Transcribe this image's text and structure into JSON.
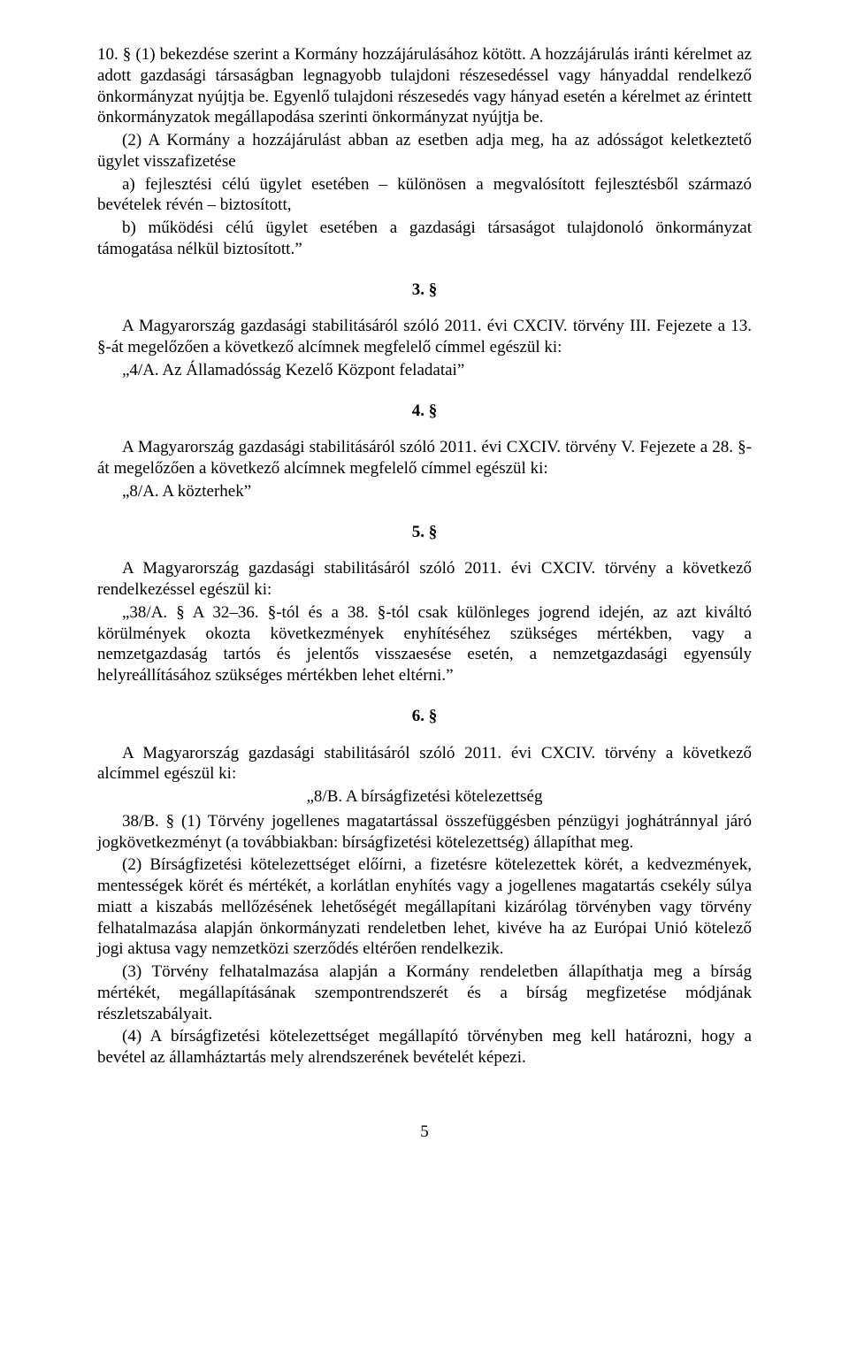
{
  "p1": "10. § (1) bekezdése szerint a Kormány hozzájárulásához kötött. A hozzájárulás iránti kérelmet az adott gazdasági társaságban legnagyobb tulajdoni részesedéssel vagy hányaddal rendelkező önkormányzat nyújtja be. Egyenlő tulajdoni részesedés vagy hányad esetén a kérelmet az érintett önkormányzatok megállapodása szerinti önkormányzat nyújtja be.",
  "p2": "(2) A Kormány a hozzájárulást abban az esetben adja meg, ha az adósságot keletkeztető ügylet visszafizetése",
  "p3": "a) fejlesztési célú ügylet esetében – különösen a megvalósított fejlesztésből származó bevételek révén – biztosított,",
  "p4": "b) működési célú ügylet esetében a gazdasági társaságot tulajdonoló önkormányzat támogatása nélkül biztosított.”",
  "s3": "3. §",
  "p5": "A Magyarország gazdasági stabilitásáról szóló 2011. évi CXCIV. törvény III. Fejezete a 13. §-át megelőzően a következő alcímnek megfelelő címmel egészül ki:",
  "p6": "„4/A. Az Államadósság Kezelő Központ feladatai”",
  "s4": "4. §",
  "p7": "A Magyarország gazdasági stabilitásáról szóló 2011. évi CXCIV. törvény V. Fejezete a 28. §-át megelőzően a következő alcímnek megfelelő címmel egészül ki:",
  "p8": "„8/A. A közterhek”",
  "s5": "5. §",
  "p9": "A Magyarország gazdasági stabilitásáról szóló 2011. évi CXCIV. törvény a következő rendelkezéssel egészül ki:",
  "p10": "„38/A. § A 32–36. §-tól és a 38. §-tól csak különleges jogrend idején, az azt kiváltó körülmények okozta következmények enyhítéséhez szükséges mértékben, vagy a nemzetgazdaság tartós és jelentős visszaesése esetén, a nemzetgazdasági egyensúly helyreállításához szükséges mértékben lehet eltérni.”",
  "s6": "6. §",
  "p11": "A Magyarország gazdasági stabilitásáról szóló 2011. évi CXCIV. törvény a következő alcímmel egészül ki:",
  "p12": "„8/B. A bírságfizetési kötelezettség",
  "p13": "38/B. § (1) Törvény jogellenes magatartással összefüggésben pénzügyi joghátránnyal járó jogkövetkezményt (a továbbiakban: bírságfizetési kötelezettség) állapíthat meg.",
  "p14": "(2) Bírságfizetési kötelezettséget előírni, a fizetésre kötelezettek körét, a kedvezmények, mentességek körét és mértékét, a korlátlan enyhítés vagy a jogellenes magatartás csekély súlya miatt a kiszabás mellőzésének lehetőségét megállapítani kizárólag törvényben vagy törvény felhatalmazása alapján önkormányzati rendeletben lehet, kivéve ha az Európai Unió kötelező jogi aktusa vagy nemzetközi szerződés eltérően rendelkezik.",
  "p15": "(3) Törvény felhatalmazása alapján a Kormány rendeletben állapíthatja meg a bírság mértékét, megállapításának szempontrendszerét és a bírság megfizetése módjának részletszabályait.",
  "p16": "(4) A bírságfizetési kötelezettséget megállapító törvényben meg kell határozni, hogy a bevétel az államháztartás mely alrendszerének bevételét képezi.",
  "pagenum": "5"
}
